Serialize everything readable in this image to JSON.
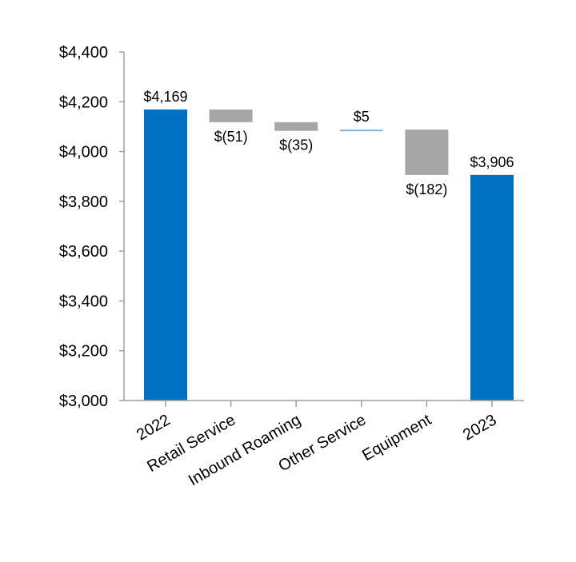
{
  "chart_data": {
    "type": "waterfall",
    "title": "",
    "xlabel": "",
    "ylabel": "",
    "ylim": [
      3000,
      4400
    ],
    "yticks": [
      3000,
      3200,
      3400,
      3600,
      3800,
      4000,
      4200,
      4400
    ],
    "ytick_labels": [
      "$3,000",
      "$3,200",
      "$3,400",
      "$3,600",
      "$3,800",
      "$4,000",
      "$4,200",
      "$4,400"
    ],
    "grid": false,
    "categories": [
      "2022",
      "Retail Service",
      "Inbound Roaming",
      "Other Service",
      "Equipment",
      "2023"
    ],
    "values": [
      4169,
      -51,
      -35,
      5,
      -182,
      3906
    ],
    "kinds": [
      "total",
      "delta",
      "delta",
      "delta",
      "delta",
      "total"
    ],
    "data_labels": [
      "$4,169",
      "$(51)",
      "$(35)",
      "$5",
      "$(182)",
      "$3,906"
    ],
    "colors": {
      "total": "#0070C0",
      "decrease": "#A6A6A6",
      "increase": "#7FB2D6",
      "axis": "#A0A0A0"
    }
  }
}
